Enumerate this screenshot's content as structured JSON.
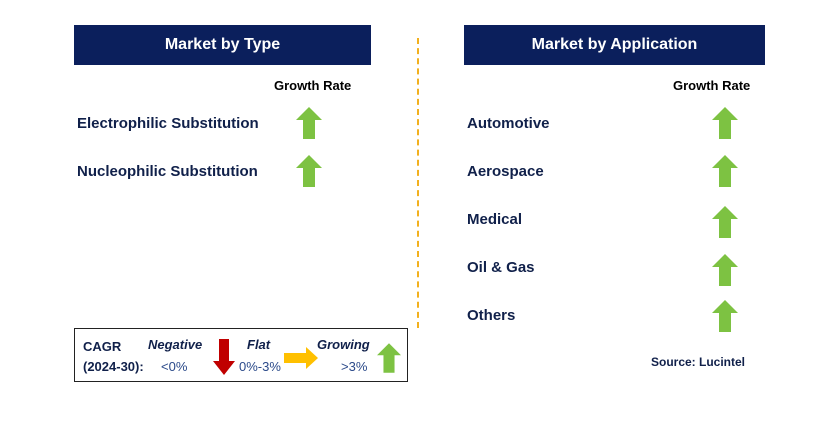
{
  "type_panel": {
    "title": "Market by Type",
    "growth_header": "Growth Rate",
    "rows": [
      {
        "label": "Electrophilic Substitution",
        "trend": "growing"
      },
      {
        "label": "Nucleophilic Substitution",
        "trend": "growing"
      }
    ]
  },
  "application_panel": {
    "title": "Market by Application",
    "growth_header": "Growth Rate",
    "rows": [
      {
        "label": "Automotive",
        "trend": "growing"
      },
      {
        "label": "Aerospace",
        "trend": "growing"
      },
      {
        "label": "Medical",
        "trend": "growing"
      },
      {
        "label": "Oil & Gas",
        "trend": "growing"
      },
      {
        "label": "Others",
        "trend": "growing"
      }
    ]
  },
  "legend": {
    "cagr_label_line1": "CAGR",
    "cagr_label_line2": "(2024-30):",
    "negative_label": "Negative",
    "negative_range": "<0%",
    "flat_label": "Flat",
    "flat_range": "0%-3%",
    "growing_label": "Growing",
    "growing_range": ">3%"
  },
  "source": "Source: Lucintel",
  "colors": {
    "banner": "#0b1f5c",
    "arrow_up": "#7dc242",
    "arrow_down": "#c00000",
    "arrow_flat": "#ffc000",
    "divider": "#f2b01e"
  }
}
